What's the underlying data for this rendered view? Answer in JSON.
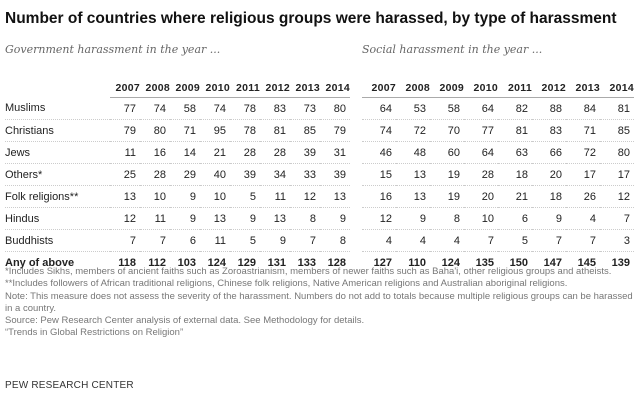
{
  "title": "Number of countries where religious groups were harassed, by type of harassment",
  "gov_subtitle": "Government harassment in the year ...",
  "soc_subtitle": "Social harassment in the year ...",
  "years": [
    "2007",
    "2008",
    "2009",
    "2010",
    "2011",
    "2012",
    "2013",
    "2014"
  ],
  "rows": [
    {
      "label": "Muslims",
      "gov": [
        "77",
        "74",
        "58",
        "74",
        "78",
        "83",
        "73",
        "80"
      ],
      "soc": [
        "64",
        "53",
        "58",
        "64",
        "82",
        "88",
        "84",
        "81"
      ]
    },
    {
      "label": "Christians",
      "gov": [
        "79",
        "80",
        "71",
        "95",
        "78",
        "81",
        "85",
        "79"
      ],
      "soc": [
        "74",
        "72",
        "70",
        "77",
        "81",
        "83",
        "71",
        "85"
      ]
    },
    {
      "label": "Jews",
      "gov": [
        "11",
        "16",
        "14",
        "21",
        "28",
        "28",
        "39",
        "31"
      ],
      "soc": [
        "46",
        "48",
        "60",
        "64",
        "63",
        "66",
        "72",
        "80"
      ]
    },
    {
      "label": "Others*",
      "gov": [
        "25",
        "28",
        "29",
        "40",
        "39",
        "34",
        "33",
        "39"
      ],
      "soc": [
        "15",
        "13",
        "19",
        "28",
        "18",
        "20",
        "17",
        "17"
      ]
    },
    {
      "label": "Folk religions**",
      "gov": [
        "13",
        "10",
        "9",
        "10",
        "5",
        "11",
        "12",
        "13"
      ],
      "soc": [
        "16",
        "13",
        "19",
        "20",
        "21",
        "18",
        "26",
        "12"
      ]
    },
    {
      "label": "Hindus",
      "gov": [
        "12",
        "11",
        "9",
        "13",
        "9",
        "13",
        "8",
        "9"
      ],
      "soc": [
        "12",
        "9",
        "8",
        "10",
        "6",
        "9",
        "4",
        "7"
      ]
    },
    {
      "label": "Buddhists",
      "gov": [
        "7",
        "7",
        "6",
        "11",
        "5",
        "9",
        "7",
        "8"
      ],
      "soc": [
        "4",
        "4",
        "4",
        "7",
        "5",
        "7",
        "7",
        "3"
      ]
    }
  ],
  "total": {
    "label": "Any of above",
    "gov": [
      "118",
      "112",
      "103",
      "124",
      "129",
      "131",
      "133",
      "128"
    ],
    "soc": [
      "127",
      "110",
      "124",
      "135",
      "150",
      "147",
      "145",
      "139"
    ]
  },
  "notes": [
    "*Includes Sikhs, members of ancient faiths such as Zoroastrianism, members of newer faiths such as Baha'i, other religious groups and atheists.",
    "**Includes followers of African traditional religions, Chinese folk religions, Native American religions and Australian aboriginal religions.",
    "Note: This measure does not assess the severity of the harassment. Numbers do not add to totals because multiple religious groups can be harassed in a country.",
    "Source: Pew Research Center analysis of external data. See Methodology for details.",
    "“Trends in Global Restrictions on Religion”"
  ],
  "brand": "PEW RESEARCH CENTER"
}
